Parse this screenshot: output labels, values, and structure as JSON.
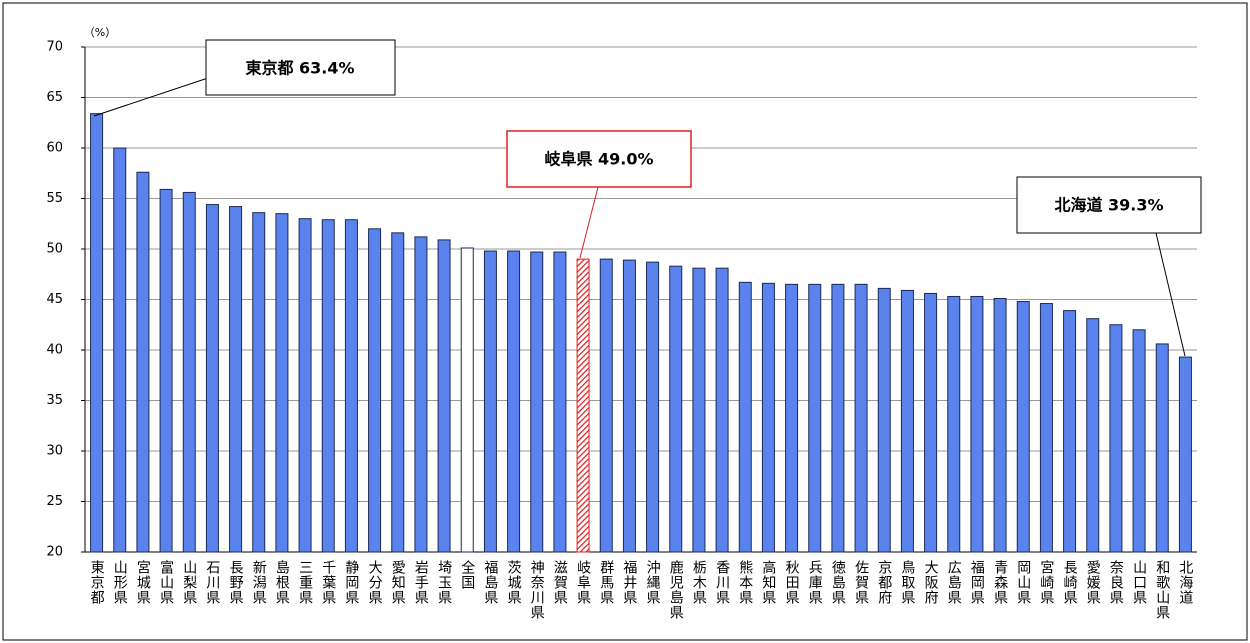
{
  "chart_data": {
    "type": "bar",
    "y_unit": "（%）",
    "categories": [
      "東京都",
      "山形県",
      "宮城県",
      "富山県",
      "山梨県",
      "石川県",
      "長野県",
      "新潟県",
      "島根県",
      "三重県",
      "千葉県",
      "静岡県",
      "大分県",
      "愛知県",
      "岩手県",
      "埼玉県",
      "全国",
      "福島県",
      "茨城県",
      "神奈川県",
      "滋賀県",
      "岐阜県",
      "群馬県",
      "福井県",
      "沖縄県",
      "鹿児島県",
      "栃木県",
      "香川県",
      "熊本県",
      "高知県",
      "秋田県",
      "兵庫県",
      "徳島県",
      "佐賀県",
      "京都府",
      "鳥取県",
      "大阪府",
      "広島県",
      "福岡県",
      "青森県",
      "岡山県",
      "宮崎県",
      "長崎県",
      "愛媛県",
      "奈良県",
      "山口県",
      "和歌山県",
      "北海道"
    ],
    "values": [
      63.4,
      60.0,
      57.6,
      55.9,
      55.6,
      54.4,
      54.2,
      53.6,
      53.5,
      53.0,
      52.9,
      52.9,
      52.0,
      51.6,
      51.2,
      50.9,
      50.1,
      49.8,
      49.8,
      49.7,
      49.7,
      49.0,
      49.0,
      48.9,
      48.7,
      48.3,
      48.1,
      48.1,
      46.7,
      46.6,
      46.5,
      46.5,
      46.5,
      46.5,
      46.1,
      45.9,
      45.6,
      45.3,
      45.3,
      45.1,
      44.8,
      44.6,
      43.9,
      43.1,
      42.5,
      42.0,
      40.6,
      39.3
    ],
    "color": "#5b83ee",
    "special_colors": {
      "16": "#ffffff",
      "21": "#e02020"
    },
    "hatched": [
      21
    ],
    "ylim": [
      20,
      70
    ],
    "yticks": [
      20,
      25,
      30,
      35,
      40,
      45,
      50,
      55,
      60,
      65,
      70
    ],
    "grid": true,
    "annotations": [
      "東京都 63.4%",
      "岐阜県 49.0%",
      "北海道 39.3%"
    ]
  }
}
